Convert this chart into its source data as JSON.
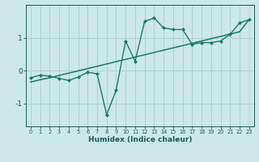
{
  "xlabel": "Humidex (Indice chaleur)",
  "ylabel": "",
  "bg_color": "#cce8e8",
  "grid_color": "#aacece",
  "line_color": "#1a7a6a",
  "x_data": [
    0,
    1,
    2,
    3,
    4,
    5,
    6,
    7,
    8,
    9,
    10,
    11,
    12,
    13,
    14,
    15,
    16,
    17,
    18,
    19,
    20,
    21,
    22,
    23
  ],
  "y_curve": [
    -0.22,
    -0.14,
    -0.17,
    -0.24,
    -0.3,
    -0.2,
    -0.05,
    -0.1,
    -1.35,
    -0.6,
    0.9,
    0.28,
    1.5,
    1.6,
    1.3,
    1.25,
    1.25,
    0.8,
    0.85,
    0.85,
    0.9,
    1.1,
    1.45,
    1.55
  ],
  "y_line": [
    -0.35,
    -0.28,
    -0.22,
    -0.15,
    -0.08,
    -0.01,
    0.06,
    0.13,
    0.2,
    0.27,
    0.34,
    0.41,
    0.48,
    0.55,
    0.62,
    0.69,
    0.76,
    0.83,
    0.9,
    0.97,
    1.04,
    1.11,
    1.18,
    1.55
  ],
  "ylim": [
    -1.7,
    2.0
  ],
  "xlim": [
    -0.5,
    23.5
  ],
  "yticks": [
    -1,
    0,
    1
  ],
  "xticks": [
    0,
    1,
    2,
    3,
    4,
    5,
    6,
    7,
    8,
    9,
    10,
    11,
    12,
    13,
    14,
    15,
    16,
    17,
    18,
    19,
    20,
    21,
    22,
    23
  ],
  "tick_color": "#1a5a5a",
  "xlabel_fontsize": 6.5,
  "xtick_fontsize": 4.8,
  "ytick_fontsize": 6.5
}
